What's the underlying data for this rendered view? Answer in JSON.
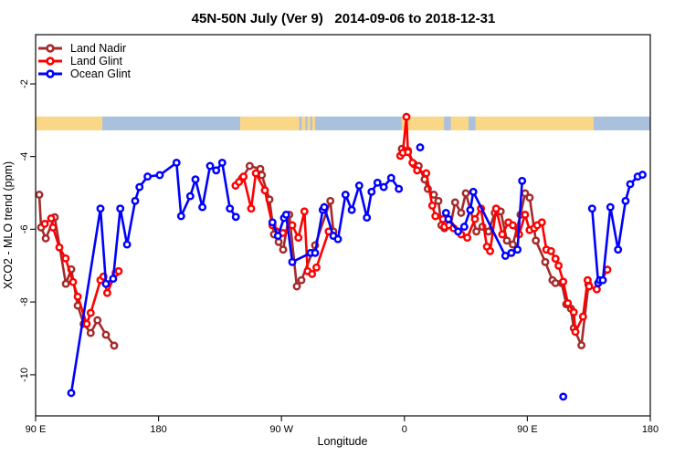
{
  "chart_data": {
    "type": "line",
    "title": "45N-50N July (Ver 9)   2014-09-06 to 2018-12-31",
    "xlabel": "Longitude",
    "ylabel": "XCO2 - MLO trend (ppm)",
    "x_ticks": [
      {
        "d": 0,
        "label": "90 E"
      },
      {
        "d": 90,
        "label": "180"
      },
      {
        "d": 180,
        "label": "90 W"
      },
      {
        "d": 270,
        "label": "0"
      },
      {
        "d": 360,
        "label": "90 E"
      },
      {
        "d": 450,
        "label": "180"
      }
    ],
    "y_tick_labels": [
      "-2",
      "-4",
      "-6",
      "-8",
      "-10"
    ],
    "y_tick_values": [
      -2,
      -4,
      -6,
      -8,
      -10
    ],
    "xlim_deg": [
      0,
      450
    ],
    "ylim": [
      -11.13,
      -0.65
    ],
    "grid": false,
    "legend_position": "top-left",
    "map_band": {
      "y_top_ppm": -2.9,
      "y_bottom_ppm": -3.28,
      "land_color": "#FAD687",
      "ocean_color": "#A9C1DD",
      "segments": [
        {
          "type": "land",
          "d": [
            0,
            48.8
          ]
        },
        {
          "type": "ocean",
          "d": [
            48.8,
            149.8
          ]
        },
        {
          "type": "land",
          "d": [
            149.8,
            204.6
          ]
        },
        {
          "type": "ocean",
          "d": [
            204.6,
            268.1
          ]
        },
        {
          "type": "land",
          "d": [
            268.1,
            408.5
          ]
        },
        {
          "type": "ocean",
          "d": [
            408.5,
            450
          ]
        },
        {
          "type": "ocean",
          "d": [
            193.0,
            194.8
          ]
        },
        {
          "type": "ocean",
          "d": [
            197.5,
            199.0
          ]
        },
        {
          "type": "ocean",
          "d": [
            201.0,
            202.5
          ]
        },
        {
          "type": "ocean",
          "d": [
            299.0,
            304.0
          ]
        },
        {
          "type": "ocean",
          "d": [
            317.0,
            322.0
          ]
        }
      ]
    },
    "series": [
      {
        "name": "Land Nadir",
        "color": "#A52A2A",
        "segments": [
          [
            [
              2.7,
              -5.05
            ],
            [
              4.0,
              -5.95
            ],
            [
              7.4,
              -6.25
            ],
            [
              14.0,
              -5.67
            ],
            [
              22.1,
              -7.5
            ],
            [
              26.1,
              -7.1
            ],
            [
              30.8,
              -8.1
            ],
            [
              35.2,
              -8.6
            ],
            [
              40.3,
              -8.85
            ],
            [
              45.3,
              -8.5
            ],
            [
              51.5,
              -8.9
            ],
            [
              57.5,
              -9.2
            ]
          ],
          [
            [
              151.1,
              -4.6
            ],
            [
              156.7,
              -4.26
            ],
            [
              164.5,
              -4.34
            ],
            [
              165.6,
              -4.51
            ],
            [
              171.2,
              -5.18
            ],
            [
              174.5,
              -6.14
            ],
            [
              177.9,
              -6.35
            ],
            [
              181.2,
              -6.56
            ],
            [
              185.7,
              -5.6
            ],
            [
              191.2,
              -7.57
            ],
            [
              194.6,
              -7.4
            ],
            [
              204.6,
              -6.44
            ],
            [
              215.8,
              -5.22
            ],
            [
              218.0,
              -6.06
            ]
          ],
          [
            [
              268.1,
              -3.79
            ],
            [
              272.6,
              -3.84
            ],
            [
              277.0,
              -4.21
            ],
            [
              280.4,
              -4.26
            ],
            [
              284.8,
              -4.63
            ],
            [
              287.1,
              -4.89
            ],
            [
              291.5,
              -5.05
            ],
            [
              294.9,
              -5.22
            ],
            [
              297.1,
              -5.89
            ],
            [
              299.3,
              -5.97
            ],
            [
              303.8,
              -5.89
            ],
            [
              307.1,
              -5.26
            ],
            [
              311.5,
              -5.55
            ],
            [
              314.9,
              -5.01
            ],
            [
              322.7,
              -6.06
            ],
            [
              327.1,
              -5.93
            ],
            [
              331.6,
              -6.06
            ],
            [
              336.1,
              -5.55
            ],
            [
              340.5,
              -5.51
            ],
            [
              345.0,
              -6.31
            ],
            [
              349.4,
              -6.42
            ],
            [
              355.0,
              -5.6
            ],
            [
              358.3,
              -5.01
            ],
            [
              361.7,
              -5.13
            ],
            [
              366.2,
              -6.31
            ],
            [
              373.1,
              -6.9
            ],
            [
              378.4,
              -7.4
            ],
            [
              380.6,
              -7.48
            ],
            [
              385.1,
              -7.48
            ],
            [
              388.5,
              -8.06
            ],
            [
              391.8,
              -8.18
            ],
            [
              394.0,
              -8.72
            ],
            [
              399.6,
              -9.19
            ],
            [
              404.7,
              -7.52
            ]
          ]
        ]
      },
      {
        "name": "Land Glint",
        "color": "#FF0000",
        "segments": [
          [
            [
              6.7,
              -5.85
            ],
            [
              11.4,
              -5.7
            ],
            [
              12.7,
              -5.95
            ],
            [
              17.4,
              -6.5
            ],
            [
              21.9,
              -6.8
            ],
            [
              27.4,
              -7.45
            ],
            [
              30.8,
              -7.85
            ],
            [
              37.4,
              -8.6
            ],
            [
              40.3,
              -8.3
            ],
            [
              47.5,
              -7.4
            ],
            [
              49.7,
              -7.3
            ],
            [
              52.4,
              -7.75
            ],
            [
              58.6,
              -7.2
            ],
            [
              60.8,
              -7.15
            ]
          ],
          [
            [
              146.4,
              -4.8
            ],
            [
              148.9,
              -4.7
            ],
            [
              152.2,
              -4.55
            ],
            [
              157.8,
              -5.43
            ],
            [
              161.2,
              -4.46
            ],
            [
              167.8,
              -4.93
            ],
            [
              173.4,
              -5.89
            ],
            [
              181.0,
              -6.1
            ],
            [
              187.9,
              -5.89
            ],
            [
              192.4,
              -6.23
            ],
            [
              196.8,
              -5.51
            ],
            [
              199.1,
              -7.15
            ],
            [
              202.4,
              -7.23
            ],
            [
              205.6,
              -7.05
            ],
            [
              214.6,
              -6.06
            ]
          ],
          [
            [
              267.0,
              -3.98
            ],
            [
              268.8,
              -3.9
            ],
            [
              271.5,
              -2.91
            ],
            [
              272.6,
              -3.88
            ],
            [
              275.9,
              -4.17
            ],
            [
              279.3,
              -4.38
            ],
            [
              286.0,
              -4.46
            ],
            [
              290.4,
              -5.35
            ],
            [
              292.7,
              -5.64
            ],
            [
              298.2,
              -5.72
            ],
            [
              299.3,
              -5.93
            ],
            [
              302.7,
              -5.89
            ],
            [
              306.0,
              -5.97
            ],
            [
              311.5,
              -6.14
            ],
            [
              316.0,
              -6.23
            ],
            [
              321.6,
              -5.72
            ],
            [
              326.0,
              -5.43
            ],
            [
              330.4,
              -6.48
            ],
            [
              332.7,
              -6.6
            ],
            [
              337.1,
              -5.43
            ],
            [
              341.6,
              -6.14
            ],
            [
              346.1,
              -5.81
            ],
            [
              349.4,
              -5.89
            ],
            [
              353.9,
              -6.14
            ],
            [
              358.3,
              -5.6
            ],
            [
              361.7,
              -6.02
            ],
            [
              365.0,
              -5.97
            ],
            [
              367.2,
              -5.89
            ],
            [
              370.6,
              -5.81
            ],
            [
              373.9,
              -6.56
            ],
            [
              377.3,
              -6.6
            ],
            [
              380.6,
              -6.81
            ],
            [
              382.9,
              -7.0
            ],
            [
              386.3,
              -7.44
            ],
            [
              389.6,
              -8.03
            ],
            [
              394.0,
              -8.28
            ],
            [
              395.2,
              -8.82
            ],
            [
              400.7,
              -8.4
            ],
            [
              404.1,
              -7.4
            ],
            [
              405.2,
              -7.57
            ],
            [
              410.8,
              -7.65
            ],
            [
              418.6,
              -7.11
            ]
          ]
        ]
      },
      {
        "name": "Ocean Glint",
        "color": "#0000FF",
        "segments": [
          [
            [
              26.1,
              -10.5
            ],
            [
              47.5,
              -5.43
            ],
            [
              51.5,
              -7.5
            ],
            [
              56.8,
              -7.36
            ],
            [
              62.0,
              -5.43
            ],
            [
              66.9,
              -6.42
            ],
            [
              72.9,
              -5.22
            ],
            [
              76.0,
              -4.84
            ],
            [
              82.0,
              -4.55
            ],
            [
              90.9,
              -4.51
            ],
            [
              103.2,
              -4.17
            ],
            [
              106.5,
              -5.64
            ],
            [
              113.2,
              -5.09
            ],
            [
              117.0,
              -4.63
            ],
            [
              122.1,
              -5.39
            ],
            [
              127.7,
              -4.26
            ],
            [
              132.2,
              -4.38
            ],
            [
              136.6,
              -4.17
            ],
            [
              142.2,
              -5.43
            ],
            [
              146.6,
              -5.66
            ]
          ],
          [
            [
              173.4,
              -5.81
            ],
            [
              177.4,
              -6.18
            ],
            [
              181.9,
              -5.69
            ],
            [
              183.4,
              -5.6
            ],
            [
              187.9,
              -6.9
            ],
            [
              201.3,
              -6.65
            ],
            [
              204.6,
              -6.65
            ],
            [
              210.2,
              -5.47
            ],
            [
              211.3,
              -5.39
            ],
            [
              218.0,
              -6.18
            ],
            [
              221.3,
              -6.27
            ],
            [
              226.9,
              -5.05
            ],
            [
              231.4,
              -5.47
            ],
            [
              236.9,
              -4.8
            ],
            [
              242.5,
              -5.68
            ],
            [
              245.9,
              -4.97
            ],
            [
              250.3,
              -4.72
            ],
            [
              254.8,
              -4.84
            ],
            [
              260.3,
              -4.59
            ],
            [
              265.9,
              -4.89
            ]
          ],
          [
            [
              281.5,
              -3.75
            ]
          ],
          [
            [
              300.4,
              -5.55
            ],
            [
              302.2,
              -5.72
            ],
            [
              309.3,
              -6.06
            ],
            [
              313.8,
              -5.93
            ],
            [
              318.2,
              -5.47
            ],
            [
              320.4,
              -4.97
            ],
            [
              343.9,
              -6.73
            ],
            [
              348.3,
              -6.65
            ],
            [
              352.8,
              -6.56
            ],
            [
              356.2,
              -4.67
            ]
          ],
          [
            [
              386.3,
              -10.6
            ]
          ],
          [
            [
              407.4,
              -5.43
            ],
            [
              411.9,
              -7.48
            ],
            [
              413.0,
              -7.4
            ],
            [
              415.2,
              -7.4
            ],
            [
              420.8,
              -5.39
            ],
            [
              426.4,
              -6.56
            ],
            [
              431.9,
              -5.22
            ],
            [
              435.3,
              -4.76
            ],
            [
              440.8,
              -4.55
            ],
            [
              444.3,
              -4.5
            ]
          ]
        ]
      }
    ]
  },
  "legend": {
    "items": [
      {
        "label": "Land Nadir",
        "color": "#A52A2A"
      },
      {
        "label": "Land Glint",
        "color": "#FF0000"
      },
      {
        "label": "Ocean Glint",
        "color": "#0000FF"
      }
    ]
  }
}
